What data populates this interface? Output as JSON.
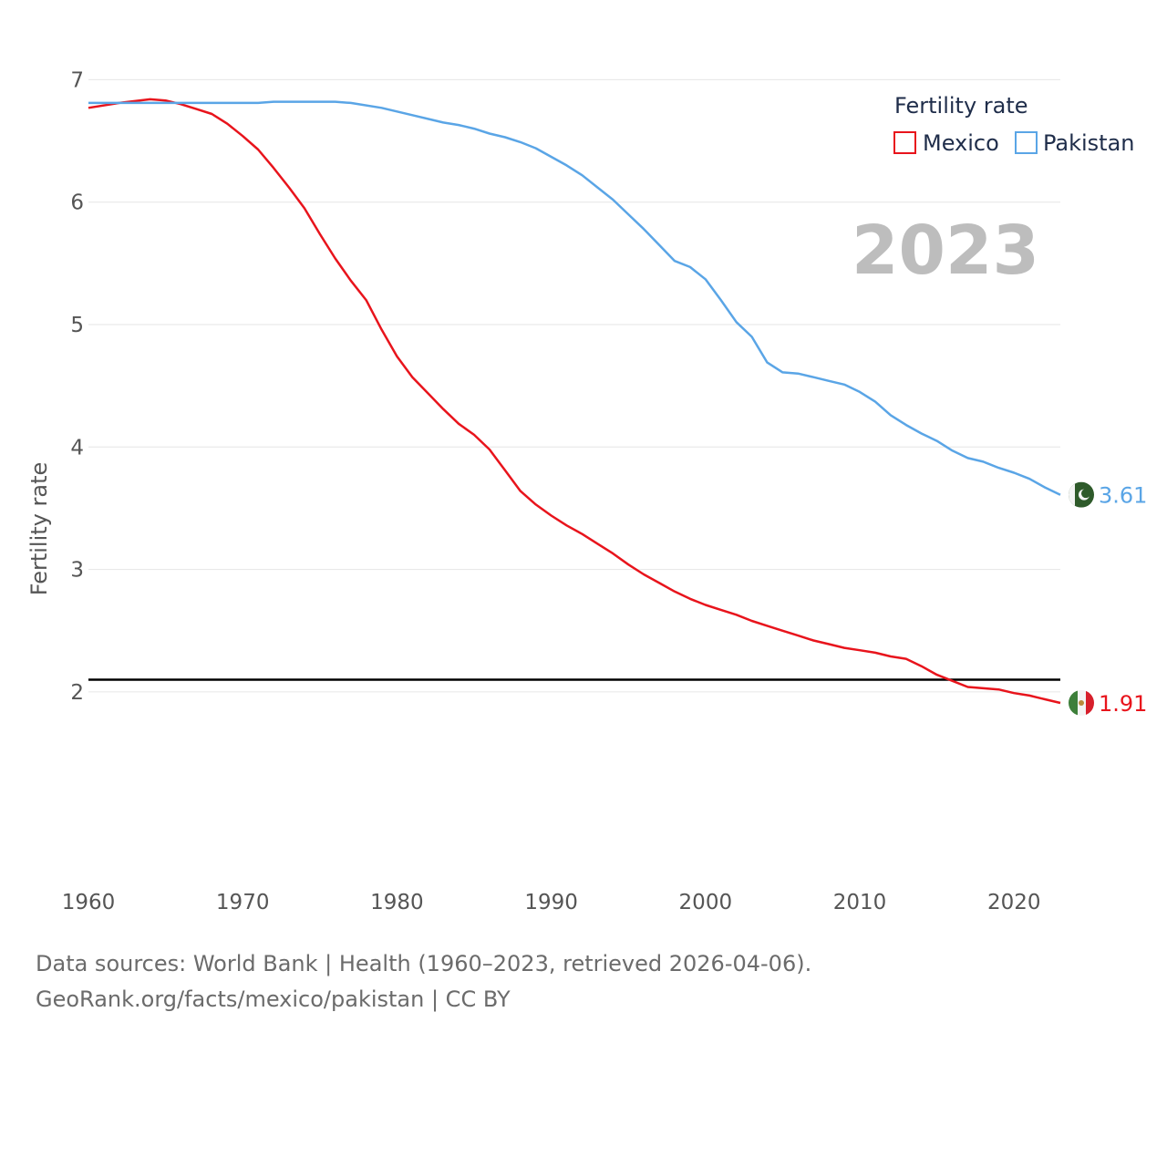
{
  "chart_data": {
    "type": "line",
    "title": "Fertility rate",
    "legend_title": "Fertility rate",
    "legend_position": "top-right",
    "year_label": "2023",
    "xlabel": "",
    "ylabel": "Fertility rate",
    "xlim": [
      1960,
      2023
    ],
    "ylim": [
      1.55,
      7.15
    ],
    "x_ticks": [
      1960,
      1970,
      1980,
      1990,
      2000,
      2010,
      2020
    ],
    "y_ticks": [
      2,
      3,
      4,
      5,
      6,
      7
    ],
    "grid": true,
    "reference_line": {
      "y": 2.1,
      "color": "#000000"
    },
    "series": [
      {
        "name": "Mexico",
        "color": "#e8141c",
        "end_label": "1.91",
        "flag_icon": "mexico-flag-icon",
        "x": [
          1960,
          1962,
          1964,
          1965,
          1966,
          1967,
          1968,
          1969,
          1970,
          1971,
          1972,
          1973,
          1974,
          1975,
          1976,
          1977,
          1978,
          1979,
          1980,
          1981,
          1982,
          1983,
          1984,
          1985,
          1986,
          1987,
          1988,
          1989,
          1990,
          1991,
          1992,
          1993,
          1994,
          1995,
          1996,
          1997,
          1998,
          1999,
          2000,
          2001,
          2002,
          2003,
          2004,
          2005,
          2006,
          2007,
          2008,
          2009,
          2010,
          2011,
          2012,
          2013,
          2014,
          2015,
          2016,
          2017,
          2018,
          2019,
          2020,
          2021,
          2022,
          2023
        ],
        "y": [
          6.77,
          6.81,
          6.84,
          6.83,
          6.8,
          6.76,
          6.72,
          6.64,
          6.54,
          6.43,
          6.28,
          6.12,
          5.95,
          5.74,
          5.54,
          5.36,
          5.2,
          4.96,
          4.74,
          4.57,
          4.44,
          4.31,
          4.19,
          4.1,
          3.98,
          3.81,
          3.64,
          3.53,
          3.44,
          3.36,
          3.29,
          3.21,
          3.13,
          3.04,
          2.96,
          2.89,
          2.82,
          2.76,
          2.71,
          2.67,
          2.63,
          2.58,
          2.54,
          2.5,
          2.46,
          2.42,
          2.39,
          2.36,
          2.34,
          2.32,
          2.29,
          2.27,
          2.21,
          2.14,
          2.09,
          2.04,
          2.03,
          2.02,
          1.99,
          1.97,
          1.94,
          1.91
        ]
      },
      {
        "name": "Pakistan",
        "color": "#5aa5e6",
        "end_label": "3.61",
        "flag_icon": "pakistan-flag-icon",
        "x": [
          1960,
          1965,
          1971,
          1972,
          1976,
          1977,
          1979,
          1981,
          1983,
          1984,
          1985,
          1986,
          1987,
          1988,
          1989,
          1990,
          1991,
          1992,
          1993,
          1994,
          1995,
          1996,
          1997,
          1998,
          1999,
          2000,
          2001,
          2002,
          2003,
          2004,
          2005,
          2006,
          2007,
          2008,
          2009,
          2010,
          2011,
          2012,
          2013,
          2014,
          2015,
          2016,
          2017,
          2018,
          2019,
          2020,
          2021,
          2022,
          2023
        ],
        "y": [
          6.81,
          6.81,
          6.81,
          6.82,
          6.82,
          6.81,
          6.77,
          6.71,
          6.65,
          6.63,
          6.6,
          6.56,
          6.53,
          6.49,
          6.44,
          6.37,
          6.3,
          6.22,
          6.12,
          6.02,
          5.9,
          5.78,
          5.65,
          5.52,
          5.47,
          5.37,
          5.2,
          5.02,
          4.9,
          4.69,
          4.61,
          4.6,
          4.57,
          4.54,
          4.51,
          4.45,
          4.37,
          4.26,
          4.18,
          4.11,
          4.05,
          3.97,
          3.91,
          3.88,
          3.83,
          3.79,
          3.74,
          3.67,
          3.61
        ]
      }
    ]
  },
  "footer": {
    "line1": "Data sources: World Bank | Health (1960–2023, retrieved 2026-04-06).",
    "line2": "GeoRank.org/facts/mexico/pakistan | CC BY"
  }
}
